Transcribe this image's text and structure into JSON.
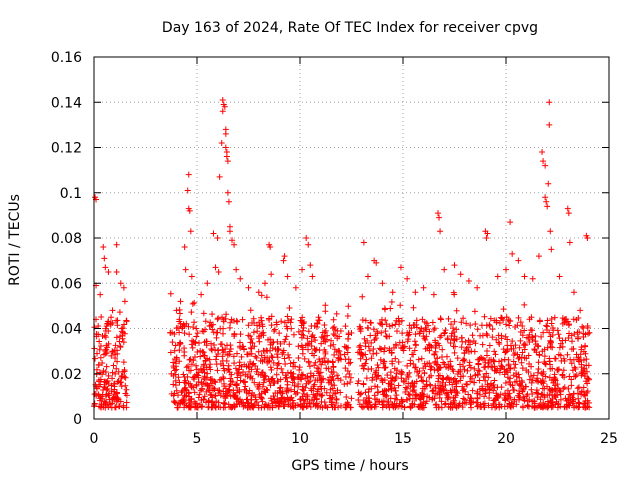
{
  "chart_data": {
    "type": "scatter",
    "title": "Day 163 of 2024, Rate Of TEC Index for receiver cpvg",
    "xlabel": "GPS time / hours",
    "ylabel": "ROTI / TECUs",
    "xlim": [
      0,
      25
    ],
    "ylim": [
      0,
      0.16
    ],
    "xticks": [
      "0",
      "5",
      "10",
      "15",
      "20",
      "25"
    ],
    "yticks": [
      "0",
      "0.02",
      "0.04",
      "0.06",
      "0.08",
      "0.1",
      "0.12",
      "0.14",
      "0.16"
    ],
    "xtick_values": [
      0,
      5,
      10,
      15,
      20,
      25
    ],
    "ytick_values": [
      0,
      0.02,
      0.04,
      0.06,
      0.08,
      0.1,
      0.12,
      0.14,
      0.16
    ],
    "grid": true,
    "marker": "+",
    "color": "#ff0000",
    "data_gaps_hours": [
      [
        1.6,
        3.7
      ]
    ],
    "dense_band": {
      "ymin": 0.005,
      "ymax": 0.045
    },
    "points": [
      [
        0.05,
        0.098
      ],
      [
        0.1,
        0.097
      ],
      [
        0.1,
        0.059
      ],
      [
        0.3,
        0.055
      ],
      [
        0.45,
        0.076
      ],
      [
        0.5,
        0.071
      ],
      [
        0.55,
        0.067
      ],
      [
        0.7,
        0.065
      ],
      [
        0.9,
        0.048
      ],
      [
        1.1,
        0.077
      ],
      [
        1.1,
        0.065
      ],
      [
        1.3,
        0.06
      ],
      [
        1.45,
        0.058
      ],
      [
        1.5,
        0.052
      ],
      [
        4.0,
        0.048
      ],
      [
        4.2,
        0.052
      ],
      [
        4.4,
        0.076
      ],
      [
        4.45,
        0.066
      ],
      [
        4.55,
        0.101
      ],
      [
        4.6,
        0.108
      ],
      [
        4.6,
        0.093
      ],
      [
        4.65,
        0.092
      ],
      [
        4.7,
        0.083
      ],
      [
        4.75,
        0.063
      ],
      [
        5.2,
        0.055
      ],
      [
        5.5,
        0.06
      ],
      [
        5.8,
        0.082
      ],
      [
        5.9,
        0.067
      ],
      [
        6.0,
        0.08
      ],
      [
        6.05,
        0.065
      ],
      [
        6.1,
        0.107
      ],
      [
        6.2,
        0.122
      ],
      [
        6.25,
        0.141
      ],
      [
        6.25,
        0.136
      ],
      [
        6.3,
        0.139
      ],
      [
        6.35,
        0.138
      ],
      [
        6.4,
        0.128
      ],
      [
        6.4,
        0.126
      ],
      [
        6.4,
        0.12
      ],
      [
        6.45,
        0.118
      ],
      [
        6.45,
        0.116
      ],
      [
        6.5,
        0.114
      ],
      [
        6.5,
        0.1
      ],
      [
        6.55,
        0.096
      ],
      [
        6.6,
        0.085
      ],
      [
        6.6,
        0.083
      ],
      [
        6.7,
        0.079
      ],
      [
        6.8,
        0.077
      ],
      [
        6.9,
        0.066
      ],
      [
        7.1,
        0.062
      ],
      [
        7.5,
        0.058
      ],
      [
        8.0,
        0.056
      ],
      [
        8.3,
        0.06
      ],
      [
        8.5,
        0.077
      ],
      [
        8.55,
        0.076
      ],
      [
        8.6,
        0.064
      ],
      [
        9.2,
        0.07
      ],
      [
        9.25,
        0.072
      ],
      [
        9.4,
        0.063
      ],
      [
        9.8,
        0.058
      ],
      [
        10.1,
        0.066
      ],
      [
        10.3,
        0.08
      ],
      [
        10.4,
        0.077
      ],
      [
        10.5,
        0.068
      ],
      [
        10.6,
        0.063
      ],
      [
        10.9,
        0.045
      ],
      [
        11.7,
        0.037
      ],
      [
        12.5,
        0.038
      ],
      [
        13.1,
        0.078
      ],
      [
        13.3,
        0.063
      ],
      [
        13.6,
        0.07
      ],
      [
        13.7,
        0.069
      ],
      [
        14.0,
        0.06
      ],
      [
        14.5,
        0.056
      ],
      [
        14.9,
        0.067
      ],
      [
        15.2,
        0.062
      ],
      [
        15.6,
        0.056
      ],
      [
        16.0,
        0.058
      ],
      [
        16.5,
        0.055
      ],
      [
        16.7,
        0.091
      ],
      [
        16.75,
        0.089
      ],
      [
        16.8,
        0.083
      ],
      [
        17.0,
        0.066
      ],
      [
        17.5,
        0.068
      ],
      [
        17.8,
        0.064
      ],
      [
        18.2,
        0.061
      ],
      [
        18.6,
        0.058
      ],
      [
        19.0,
        0.083
      ],
      [
        19.05,
        0.08
      ],
      [
        19.1,
        0.082
      ],
      [
        19.6,
        0.063
      ],
      [
        20.0,
        0.066
      ],
      [
        20.2,
        0.087
      ],
      [
        20.3,
        0.073
      ],
      [
        20.6,
        0.07
      ],
      [
        20.9,
        0.063
      ],
      [
        21.3,
        0.062
      ],
      [
        21.6,
        0.072
      ],
      [
        21.75,
        0.118
      ],
      [
        21.8,
        0.114
      ],
      [
        21.9,
        0.112
      ],
      [
        21.9,
        0.098
      ],
      [
        21.95,
        0.096
      ],
      [
        22.0,
        0.094
      ],
      [
        22.05,
        0.104
      ],
      [
        22.1,
        0.14
      ],
      [
        22.1,
        0.13
      ],
      [
        22.15,
        0.083
      ],
      [
        22.2,
        0.075
      ],
      [
        22.6,
        0.063
      ],
      [
        23.0,
        0.093
      ],
      [
        23.05,
        0.091
      ],
      [
        23.1,
        0.078
      ],
      [
        23.3,
        0.056
      ],
      [
        23.6,
        0.048
      ],
      [
        23.9,
        0.081
      ],
      [
        23.95,
        0.08
      ]
    ]
  }
}
